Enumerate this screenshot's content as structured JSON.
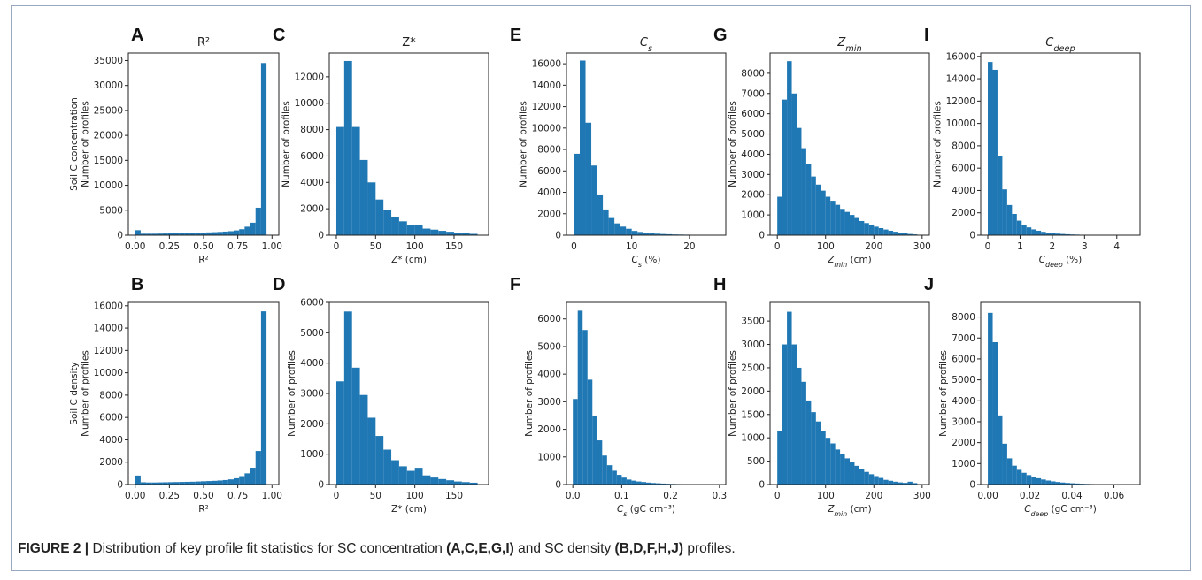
{
  "caption": {
    "label": "FIGURE 2 |",
    "text1": " Distribution of key profile fit statistics for SC concentration ",
    "bold1": "(A,C,E,G,I)",
    "text2": " and SC density ",
    "bold2": "(B,D,F,H,J)",
    "text3": " profiles."
  },
  "colors": {
    "bar": "#1f77b4",
    "axis": "#222222"
  },
  "chart_data": [
    {
      "id": "A",
      "type": "bar",
      "letter": "A",
      "title": "R²",
      "xlabel": "R²",
      "ylabel": [
        "Soil C concentration",
        "Number of profiles"
      ],
      "xlim": [
        -0.05,
        1.05
      ],
      "ylim": [
        0,
        36500
      ],
      "xticks": [
        0,
        0.25,
        0.5,
        0.75,
        1.0
      ],
      "xticklabels": [
        "0.00",
        "0.25",
        "0.50",
        "0.75",
        "1.00"
      ],
      "yticks": [
        0,
        5000,
        10000,
        15000,
        20000,
        25000,
        30000,
        35000
      ],
      "bin_start": 0,
      "bin_width": 0.04,
      "values": [
        1000,
        300,
        300,
        300,
        320,
        340,
        360,
        380,
        400,
        420,
        450,
        480,
        520,
        560,
        600,
        650,
        720,
        800,
        950,
        1200,
        1700,
        2500,
        5500,
        34500
      ]
    },
    {
      "id": "B",
      "type": "bar",
      "letter": "B",
      "title": "",
      "xlabel": "R²",
      "ylabel": [
        "Soil C density",
        "Number of profiles"
      ],
      "xlim": [
        -0.05,
        1.05
      ],
      "ylim": [
        0,
        16300
      ],
      "xticks": [
        0,
        0.25,
        0.5,
        0.75,
        1.0
      ],
      "xticklabels": [
        "0.00",
        "0.25",
        "0.50",
        "0.75",
        "1.00"
      ],
      "yticks": [
        0,
        2000,
        4000,
        6000,
        8000,
        10000,
        12000,
        14000,
        16000
      ],
      "bin_start": 0,
      "bin_width": 0.04,
      "values": [
        800,
        200,
        180,
        180,
        190,
        200,
        210,
        220,
        230,
        240,
        250,
        270,
        290,
        310,
        330,
        360,
        400,
        460,
        560,
        750,
        1000,
        1500,
        3000,
        15500
      ]
    },
    {
      "id": "C",
      "type": "bar",
      "letter": "C",
      "title": "Z*",
      "xlabel": "Z* (cm)",
      "ylabel": [
        "Number of profiles"
      ],
      "xlim": [
        -9,
        194
      ],
      "ylim": [
        0,
        13800
      ],
      "xticks": [
        0,
        50,
        100,
        150
      ],
      "xticklabels": [
        "0",
        "50",
        "100",
        "150"
      ],
      "yticks": [
        0,
        2000,
        4000,
        6000,
        8000,
        10000,
        12000
      ],
      "bin_start": 0,
      "bin_width": 10,
      "values": [
        8200,
        13200,
        8200,
        5700,
        4000,
        2700,
        1900,
        1400,
        1050,
        800,
        750,
        500,
        420,
        330,
        260,
        200,
        150,
        100
      ]
    },
    {
      "id": "D",
      "type": "bar",
      "letter": "D",
      "title": "",
      "xlabel": "Z* (cm)",
      "ylabel": [
        "Number of profiles"
      ],
      "xlim": [
        -9,
        194
      ],
      "ylim": [
        0,
        6000
      ],
      "xticks": [
        0,
        50,
        100,
        150
      ],
      "xticklabels": [
        "0",
        "50",
        "100",
        "150"
      ],
      "yticks": [
        0,
        1000,
        2000,
        3000,
        4000,
        5000,
        6000
      ],
      "bin_start": 0,
      "bin_width": 10,
      "values": [
        3400,
        5700,
        3850,
        2950,
        2200,
        1600,
        1150,
        800,
        600,
        450,
        550,
        300,
        230,
        180,
        140,
        100,
        80,
        60
      ]
    },
    {
      "id": "E",
      "type": "bar",
      "letter": "E",
      "title": "C_s",
      "title_main": "C",
      "title_sub": "s",
      "xlabel": "C_s (%)",
      "xlabel_main": "C",
      "xlabel_sub": "s",
      "xlabel_unit": " (%)",
      "ylabel": [
        "Number of profiles"
      ],
      "xlim": [
        -1.3,
        26.3
      ],
      "ylim": [
        0,
        17000
      ],
      "xticks": [
        0,
        10,
        20
      ],
      "xticklabels": [
        "0",
        "10",
        "20"
      ],
      "yticks": [
        0,
        2000,
        4000,
        6000,
        8000,
        10000,
        12000,
        14000,
        16000
      ],
      "bin_start": 0,
      "bin_width": 1,
      "values": [
        7600,
        16300,
        10500,
        6500,
        3800,
        2400,
        1600,
        1100,
        800,
        600,
        400,
        300,
        200,
        180,
        140,
        110,
        90,
        70,
        60,
        50,
        40,
        30,
        20,
        15,
        10
      ]
    },
    {
      "id": "F",
      "type": "bar",
      "letter": "F",
      "title": "",
      "xlabel": "C_s (gC cm⁻³)",
      "xlabel_main": "C",
      "xlabel_sub": "s",
      "xlabel_unit": " (gC cm⁻³)",
      "ylabel": [
        "Number of profiles"
      ],
      "xlim": [
        -0.013,
        0.313
      ],
      "ylim": [
        0,
        6600
      ],
      "xticks": [
        0,
        0.1,
        0.2,
        0.3
      ],
      "xticklabels": [
        "0.0",
        "0.1",
        "0.2",
        "0.3"
      ],
      "yticks": [
        0,
        1000,
        2000,
        3000,
        4000,
        5000,
        6000
      ],
      "bin_start": 0,
      "bin_width": 0.01,
      "values": [
        3100,
        6300,
        5600,
        3800,
        2500,
        1600,
        1050,
        700,
        500,
        350,
        250,
        180,
        140,
        110,
        90,
        70,
        55,
        45,
        35,
        28,
        22,
        18,
        14,
        10,
        8,
        6,
        5,
        4,
        3,
        2
      ]
    },
    {
      "id": "G",
      "type": "bar",
      "letter": "G",
      "title": "Z_min",
      "title_main": "Z",
      "title_sub": "min",
      "xlabel": "Z_min (cm)",
      "xlabel_main": "Z",
      "xlabel_sub": "min",
      "xlabel_unit": " (cm)",
      "ylabel": [
        "Number of profiles"
      ],
      "xlim": [
        -15,
        315
      ],
      "ylim": [
        0,
        9000
      ],
      "xticks": [
        0,
        100,
        200,
        300
      ],
      "xticklabels": [
        "0",
        "100",
        "200",
        "300"
      ],
      "yticks": [
        0,
        1000,
        2000,
        3000,
        4000,
        5000,
        6000,
        7000,
        8000
      ],
      "bin_start": 0,
      "bin_width": 10,
      "values": [
        1900,
        6700,
        8600,
        7000,
        5300,
        4300,
        3500,
        2900,
        2500,
        2200,
        1900,
        1700,
        1500,
        1300,
        1150,
        1000,
        850,
        700,
        600,
        500,
        420,
        350,
        280,
        220,
        170,
        130,
        90,
        60,
        40,
        20
      ]
    },
    {
      "id": "H",
      "type": "bar",
      "letter": "H",
      "title": "",
      "xlabel": "Z_min (cm)",
      "xlabel_main": "Z",
      "xlabel_sub": "min",
      "xlabel_unit": " (cm)",
      "ylabel": [
        "Number of profiles"
      ],
      "xlim": [
        -15,
        315
      ],
      "ylim": [
        0,
        3900
      ],
      "xticks": [
        0,
        100,
        200,
        300
      ],
      "xticklabels": [
        "0",
        "100",
        "200",
        "300"
      ],
      "yticks": [
        0,
        500,
        1000,
        1500,
        2000,
        2500,
        3000,
        3500
      ],
      "bin_start": 0,
      "bin_width": 10,
      "values": [
        1150,
        3000,
        3700,
        3000,
        2500,
        2200,
        1800,
        1550,
        1350,
        1150,
        1000,
        880,
        750,
        650,
        560,
        480,
        400,
        330,
        270,
        220,
        180,
        140,
        100,
        80,
        60,
        45,
        35,
        60,
        30,
        10
      ]
    },
    {
      "id": "I",
      "type": "bar",
      "letter": "I",
      "title": "C_deep",
      "title_main": "C",
      "title_sub": "deep",
      "xlabel": "C_deep (%)",
      "xlabel_main": "C",
      "xlabel_sub": "deep",
      "xlabel_unit": " (%)",
      "ylabel": [
        "Number of profiles"
      ],
      "xlim": [
        -0.22,
        4.72
      ],
      "ylim": [
        0,
        16300
      ],
      "xticks": [
        0,
        1,
        2,
        3,
        4
      ],
      "xticklabels": [
        "0",
        "1",
        "2",
        "3",
        "4"
      ],
      "yticks": [
        0,
        2000,
        4000,
        6000,
        8000,
        10000,
        12000,
        14000,
        16000
      ],
      "bin_start": 0,
      "bin_width": 0.15,
      "values": [
        15500,
        14800,
        7100,
        4100,
        2700,
        1900,
        1300,
        950,
        700,
        520,
        400,
        300,
        230,
        180,
        140,
        110,
        85,
        65,
        50,
        40,
        30,
        22,
        16,
        12,
        9,
        7,
        5,
        4,
        3,
        2
      ]
    },
    {
      "id": "J",
      "type": "bar",
      "letter": "J",
      "title": "",
      "xlabel": "C_deep (gC cm⁻³)",
      "xlabel_main": "C",
      "xlabel_sub": "deep",
      "xlabel_unit": " (gC cm⁻³)",
      "ylabel": [
        "Number of profiles"
      ],
      "xlim": [
        -0.0034,
        0.0724
      ],
      "ylim": [
        0,
        8700
      ],
      "xticks": [
        0,
        0.02,
        0.04,
        0.06
      ],
      "xticklabels": [
        "0.00",
        "0.02",
        "0.04",
        "0.06"
      ],
      "yticks": [
        0,
        1000,
        2000,
        3000,
        4000,
        5000,
        6000,
        7000,
        8000
      ],
      "bin_start": 0,
      "bin_width": 0.0023,
      "values": [
        8200,
        6800,
        3300,
        1950,
        1250,
        900,
        700,
        560,
        450,
        370,
        300,
        240,
        190,
        150,
        120,
        95,
        75,
        60,
        48,
        38,
        30,
        24,
        18,
        14,
        10,
        7,
        5,
        4,
        3,
        2
      ]
    }
  ]
}
